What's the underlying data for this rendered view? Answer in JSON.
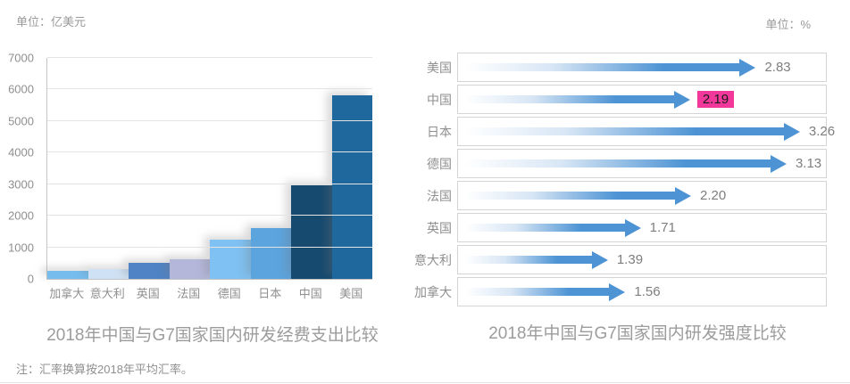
{
  "note": "注：汇率换算按2018年平均汇率。",
  "chart_data": [
    {
      "type": "bar",
      "title": "2018年中国与G7国家国内研发经费支出比较",
      "unit_label": "单位：亿美元",
      "ylabel": "亿美元",
      "ylim": [
        0,
        7000
      ],
      "yticks": [
        0,
        1000,
        2000,
        3000,
        4000,
        5000,
        6000,
        7000
      ],
      "grid": true,
      "legend": false,
      "categories": [
        "加拿大",
        "意大利",
        "英国",
        "法国",
        "德国",
        "日本",
        "中国",
        "美国"
      ],
      "values": [
        265,
        297,
        498,
        608,
        1235,
        1621,
        2974,
        5815
      ],
      "bar_colors": [
        "#76BDEE",
        "#CFE1F4",
        "#4F83C5",
        "#B4B7DA",
        "#7FC1F2",
        "#5CA4DE",
        "#174A6F",
        "#1F689E"
      ]
    },
    {
      "type": "bar",
      "orientation": "horizontal-arrow",
      "title": "2018年中国与G7国家国内研发强度比较",
      "unit_label": "单位：%",
      "xlim": [
        0,
        3.6
      ],
      "grid": false,
      "legend": false,
      "categories": [
        "美国",
        "中国",
        "日本",
        "德国",
        "法国",
        "英国",
        "意大利",
        "加拿大"
      ],
      "values": [
        2.83,
        2.19,
        3.26,
        3.13,
        2.2,
        1.71,
        1.39,
        1.56
      ],
      "value_labels": [
        "2.83",
        "2.19",
        "3.26",
        "3.13",
        "2.20",
        "1.71",
        "1.39",
        "1.56"
      ],
      "highlight_index": 1,
      "highlight_color": "#F2399B",
      "arrow_color": "#4E94D4"
    }
  ]
}
